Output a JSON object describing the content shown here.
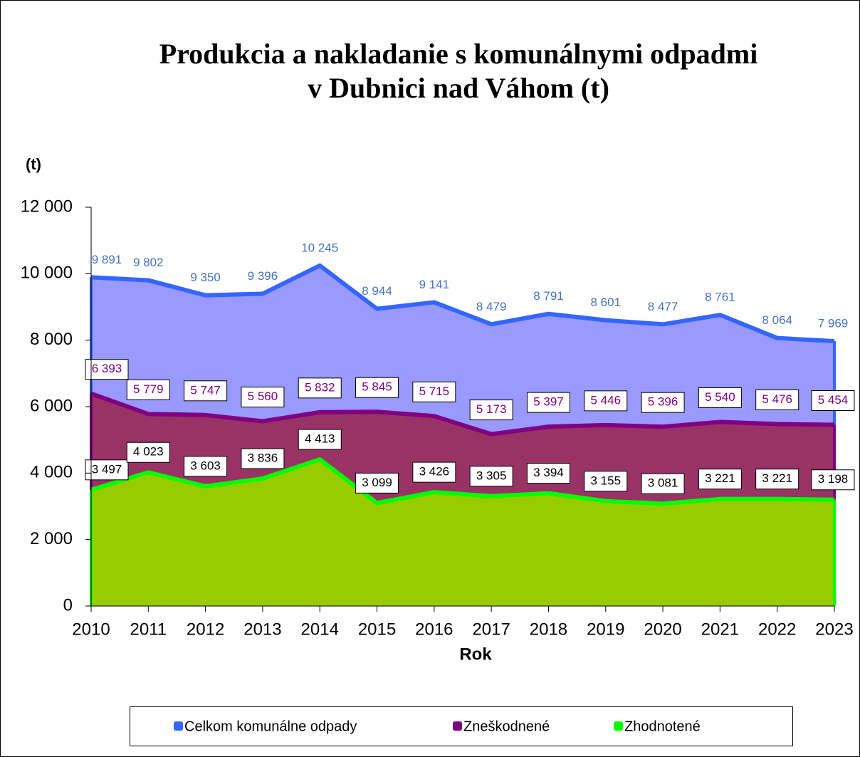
{
  "chart_data": {
    "type": "area",
    "title": [
      "Produkcia a nakladanie s komunálnymi odpadmi",
      "v Dubnici nad Váhom (t)"
    ],
    "y_label": "(t)",
    "x_label": "Rok",
    "categories": [
      "2010",
      "2011",
      "2012",
      "2013",
      "2014",
      "2015",
      "2016",
      "2017",
      "2018",
      "2019",
      "2020",
      "2021",
      "2022",
      "2023"
    ],
    "ylim": [
      0,
      12000
    ],
    "yticks": [
      0,
      {
        "value": 2000,
        "label": "2 000"
      },
      {
        "value": 4000,
        "label": "4 000"
      },
      {
        "value": 6000,
        "label": "6 000"
      },
      {
        "value": 8000,
        "label": "8 000"
      },
      {
        "value": 10000,
        "label": "10 000"
      },
      {
        "value": 12000,
        "label": "12 000"
      }
    ],
    "series": [
      {
        "name": "Celkom komunálne odpady",
        "color": "#3366ff",
        "fill": "#9999ff",
        "label_color": "#4472c4",
        "boxed_labels": false,
        "values": [
          9891,
          9802,
          9350,
          9396,
          10245,
          8944,
          9141,
          8479,
          8791,
          8601,
          8477,
          8761,
          8064,
          7969
        ],
        "value_labels": [
          "9 891",
          "9 802",
          "9 350",
          "9 396",
          "10 245",
          "8 944",
          "9 141",
          "8 479",
          "8 791",
          "8 601",
          "8 477",
          "8 761",
          "8 064",
          "7 969"
        ]
      },
      {
        "name": "Zneškodnené",
        "color": "#800080",
        "fill": "#993366",
        "label_color": "#800080",
        "boxed_labels": true,
        "values": [
          6393,
          5779,
          5747,
          5560,
          5832,
          5845,
          5715,
          5173,
          5397,
          5446,
          5396,
          5540,
          5476,
          5454
        ],
        "value_labels": [
          "6 393",
          "5 779",
          "5 747",
          "5 560",
          "5 832",
          "5 845",
          "5 715",
          "5 173",
          "5 397",
          "5 446",
          "5 396",
          "5 540",
          "5 476",
          "5 454"
        ]
      },
      {
        "name": "Zhodnotené",
        "color": "#00ff00",
        "fill": "#99cc00",
        "label_color": "#000000",
        "boxed_labels": true,
        "values": [
          3497,
          4023,
          3603,
          3836,
          4413,
          3099,
          3426,
          3305,
          3394,
          3155,
          3081,
          3221,
          3221,
          3198
        ],
        "value_labels": [
          "3 497",
          "4 023",
          "3 603",
          "3 836",
          "4 413",
          "3 099",
          "3 426",
          "3 305",
          "3 394",
          "3 155",
          "3 081",
          "3 221",
          "3 221",
          "3 198"
        ]
      }
    ]
  }
}
